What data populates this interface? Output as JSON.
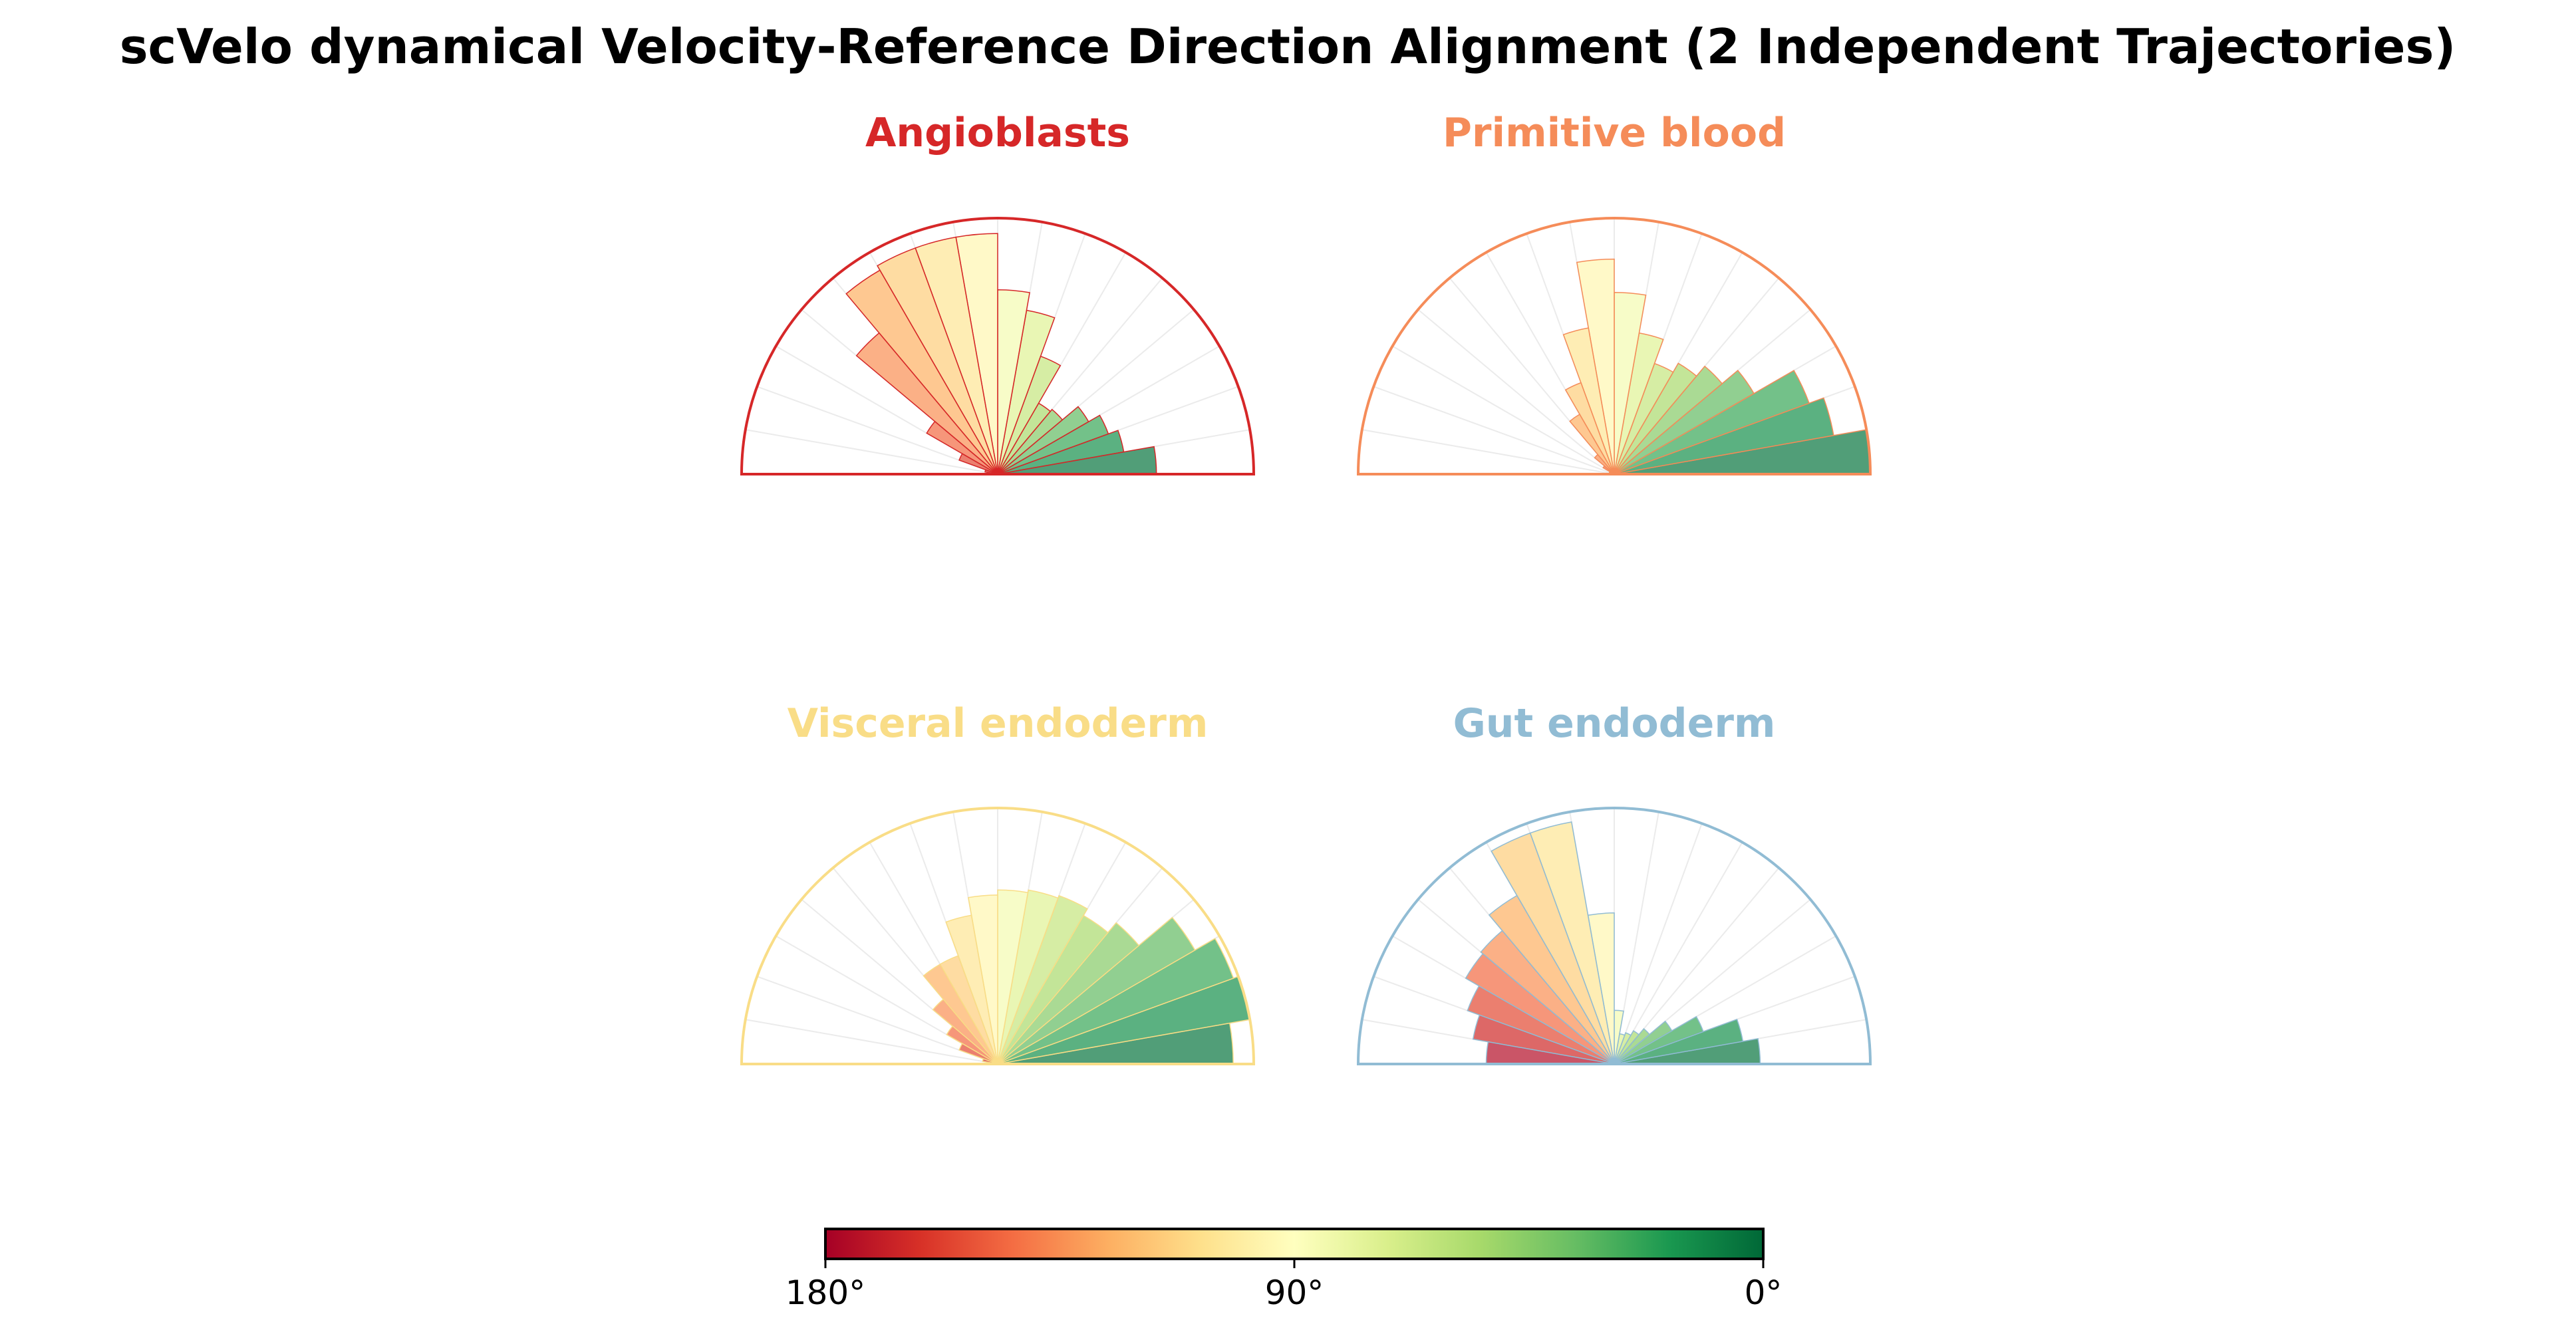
{
  "chart_data": {
    "type": "polar-bar",
    "title": "scVelo dynamical Velocity-Reference Direction Alignment (2 Independent Trajectories)",
    "angle_range_deg": [
      0,
      180
    ],
    "bins": 18,
    "bin_width_deg": 10,
    "grid": true,
    "panels": [
      {
        "name": "Angioblasts",
        "color": "#d62728",
        "values": [
          0.62,
          0.5,
          0.46,
          0.41,
          0.33,
          0.32,
          0.49,
          0.65,
          0.72,
          0.94,
          0.94,
          0.94,
          0.92,
          0.72,
          0.32,
          0.16,
          0.05,
          0.02
        ]
      },
      {
        "name": "Primitive blood",
        "color": "#f58c59",
        "values": [
          1.0,
          0.87,
          0.81,
          0.63,
          0.55,
          0.5,
          0.46,
          0.56,
          0.71,
          0.84,
          0.58,
          0.38,
          0.27,
          0.1,
          0.05,
          0.02,
          0.01,
          0.01
        ]
      },
      {
        "name": "Visceral endoderm",
        "color": "#f9dd87",
        "values": [
          0.92,
          1.0,
          0.98,
          0.89,
          0.72,
          0.67,
          0.7,
          0.69,
          0.68,
          0.66,
          0.59,
          0.45,
          0.45,
          0.33,
          0.23,
          0.16,
          0.06,
          0.03
        ]
      },
      {
        "name": "Gut endoderm",
        "color": "#91bcd4",
        "values": [
          0.57,
          0.51,
          0.37,
          0.26,
          0.18,
          0.15,
          0.13,
          0.12,
          0.21,
          0.59,
          0.96,
          0.96,
          0.76,
          0.68,
          0.67,
          0.61,
          0.56,
          0.5
        ]
      }
    ],
    "colorbar": {
      "cmap": "RdYlGn_r",
      "ticks": [
        "180°",
        "90°",
        "0°"
      ],
      "tick_values": [
        180,
        90,
        0
      ]
    }
  }
}
